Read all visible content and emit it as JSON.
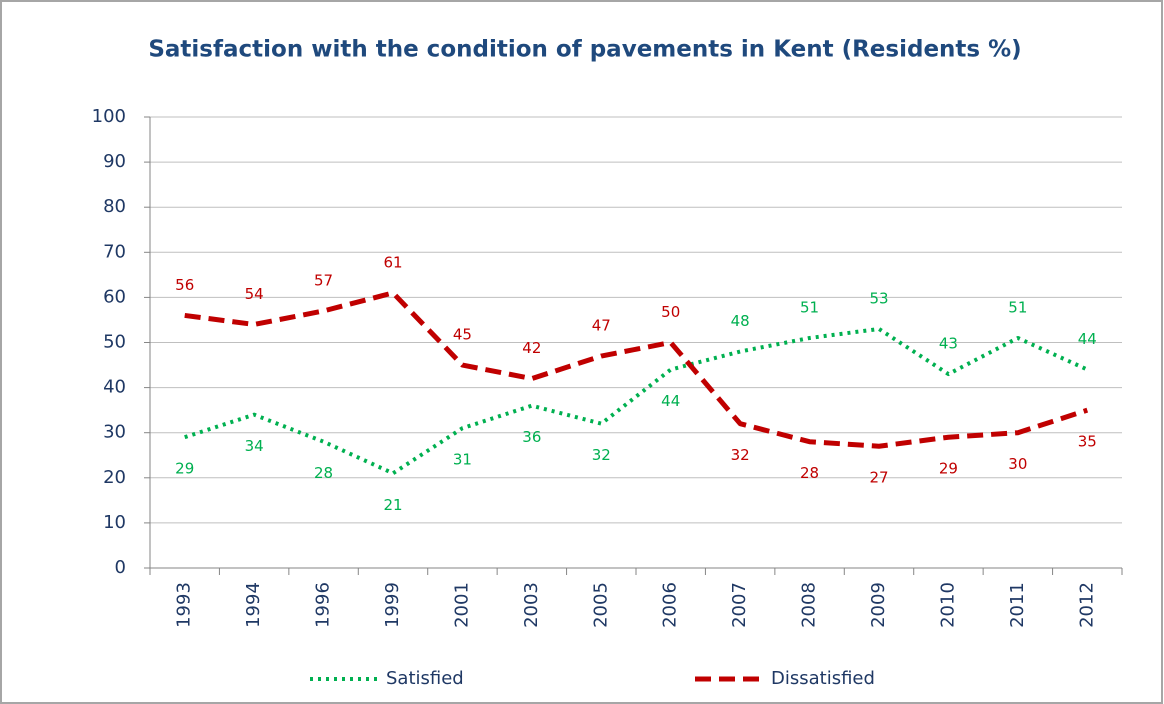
{
  "chart_data": {
    "type": "line",
    "title": "Satisfaction with the condition of pavements in Kent (Residents %)",
    "categories": [
      "1993",
      "1994",
      "1996",
      "1999",
      "2001",
      "2003",
      "2005",
      "2006",
      "2007",
      "2008",
      "2009",
      "2010",
      "2011",
      "2012"
    ],
    "series": [
      {
        "name": "Satisfied",
        "color": "#00b050",
        "style": "dotted",
        "values": [
          29,
          34,
          28,
          21,
          31,
          36,
          32,
          44,
          48,
          51,
          53,
          43,
          51,
          44
        ]
      },
      {
        "name": "Dissatisfied",
        "color": "#c00000",
        "style": "dashed",
        "values": [
          56,
          54,
          57,
          61,
          45,
          42,
          47,
          50,
          32,
          28,
          27,
          29,
          30,
          35
        ]
      }
    ],
    "ylim": [
      0,
      100
    ],
    "yticks": [
      0,
      10,
      20,
      30,
      40,
      50,
      60,
      70,
      80,
      90,
      100
    ],
    "grid": true,
    "legend": "bottom"
  }
}
